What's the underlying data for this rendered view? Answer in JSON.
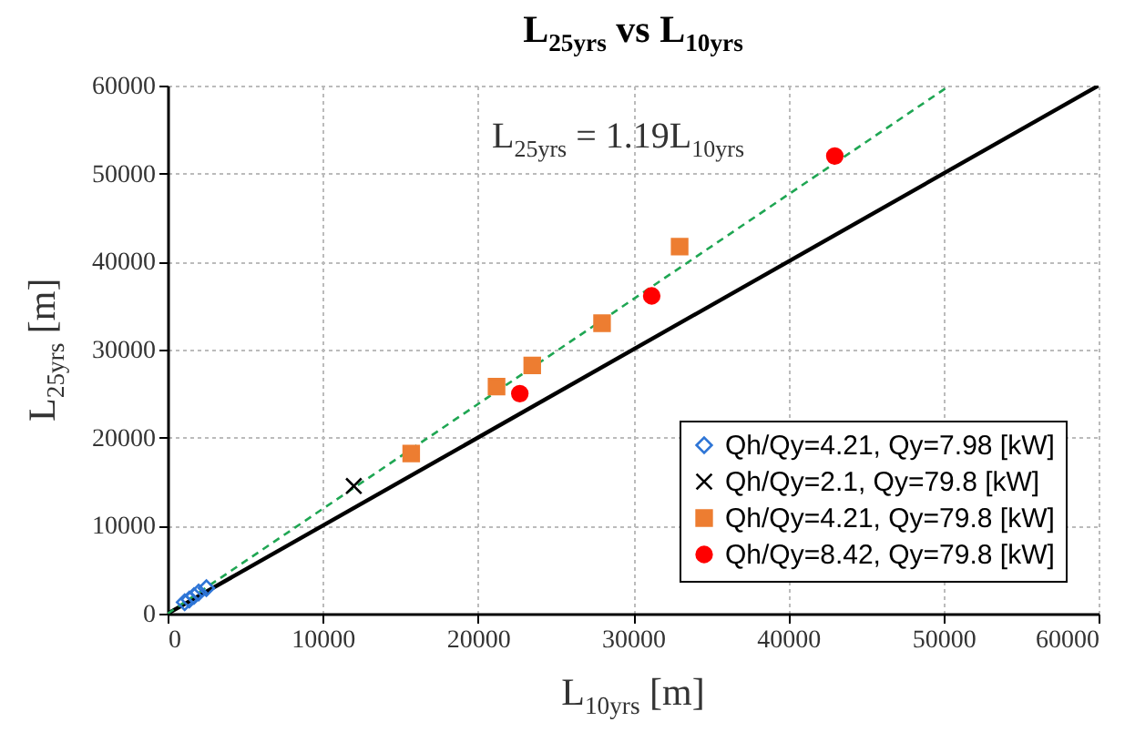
{
  "chart_data": {
    "type": "scatter",
    "title": "L$_{25yrs}$ vs L$_{10yrs}$",
    "xlabel": "L$_{10yrs}$ [m]",
    "ylabel": "L$_{25yrs}$ [m]",
    "annotations": [
      "L$_{25yrs}$ = 1.19L$_{10yrs}$"
    ],
    "xlim": [
      0,
      60000
    ],
    "ylim": [
      0,
      60000
    ],
    "xticks": [
      0,
      10000,
      20000,
      30000,
      40000,
      50000,
      60000
    ],
    "yticks": [
      0,
      10000,
      20000,
      30000,
      40000,
      50000,
      60000
    ],
    "grid": true,
    "legend": "bottom right",
    "series": [
      {
        "type": "line",
        "color": "#000000",
        "line_style": "solid",
        "x": [
          0,
          60000
        ],
        "values": [
          0,
          60000
        ]
      },
      {
        "type": "line",
        "color": "#1fa653",
        "line_style": "dashed",
        "x": [
          0,
          50400
        ],
        "values": [
          0,
          60000
        ]
      },
      {
        "name": "Qh/Qy=4.21, Qy=7.98 [kW]",
        "color": "#2e75d6",
        "marker": "diamond",
        "x": [
          1100,
          1400,
          1700,
          2000,
          2500
        ],
        "values": [
          1300,
          1600,
          2000,
          2400,
          2900
        ]
      },
      {
        "name": "Qh/Qy=2.1, Qy=79.8 [kW]",
        "color": "#000000",
        "marker": "cross",
        "x": [
          12000
        ],
        "values": [
          14500
        ]
      },
      {
        "name": "Qh/Qy=4.21, Qy=79.8 [kW]",
        "color": "#ed7d31",
        "marker": "square",
        "x": [
          15700,
          21200,
          23500,
          28000,
          33000
        ],
        "values": [
          18200,
          25800,
          28200,
          33000,
          41700
        ]
      },
      {
        "name": "Qh/Qy=8.42, Qy=79.8 [kW]",
        "color": "#ff0000",
        "marker": "circle",
        "x": [
          22700,
          31200,
          43000
        ],
        "values": [
          25000,
          36100,
          52000
        ]
      }
    ]
  }
}
